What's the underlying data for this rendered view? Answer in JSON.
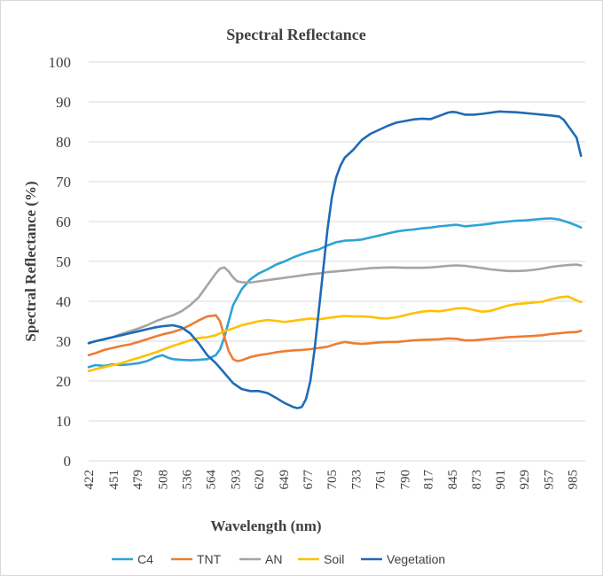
{
  "chart_data": {
    "type": "line",
    "title": "Spectral Reflectance",
    "xlabel": "Wavelength  (nm)",
    "ylabel": "Spectral Reflectance (%)",
    "ylim": [
      0,
      100
    ],
    "yticks": [
      "0",
      "10",
      "20",
      "30",
      "40",
      "50",
      "60",
      "70",
      "80",
      "90",
      "100"
    ],
    "xticks": [
      "422",
      "451",
      "479",
      "508",
      "536",
      "564",
      "593",
      "620",
      "649",
      "677",
      "705",
      "733",
      "761",
      "790",
      "817",
      "845",
      "873",
      "901",
      "929",
      "957",
      "985"
    ],
    "xlim": [
      422,
      1000
    ],
    "grid": true,
    "legend_position": "bottom",
    "series": [
      {
        "name": "C4",
        "color": "#2ea3d6",
        "x": [
          422,
          430,
          440,
          450,
          460,
          470,
          480,
          490,
          500,
          508,
          515,
          520,
          530,
          540,
          550,
          560,
          570,
          575,
          580,
          585,
          590,
          595,
          600,
          610,
          620,
          630,
          640,
          650,
          660,
          670,
          680,
          690,
          700,
          710,
          720,
          730,
          740,
          750,
          760,
          770,
          780,
          790,
          800,
          810,
          820,
          830,
          840,
          850,
          860,
          870,
          880,
          890,
          900,
          910,
          920,
          930,
          940,
          950,
          960,
          970,
          980,
          990,
          995
        ],
        "y": [
          23.5,
          24,
          23.8,
          24.2,
          24,
          24.2,
          24.5,
          25,
          26,
          26.5,
          25.8,
          25.5,
          25.3,
          25.2,
          25.3,
          25.5,
          26.5,
          28,
          31,
          35,
          39,
          41,
          43,
          45.5,
          47,
          48,
          49.2,
          50,
          51,
          51.8,
          52.5,
          53,
          54,
          54.8,
          55.2,
          55.3,
          55.5,
          56,
          56.5,
          57,
          57.5,
          57.8,
          58,
          58.3,
          58.5,
          58.8,
          59,
          59.2,
          58.8,
          59,
          59.2,
          59.5,
          59.8,
          60,
          60.2,
          60.3,
          60.5,
          60.7,
          60.8,
          60.5,
          59.8,
          59,
          58.5
        ]
      },
      {
        "name": "TNT",
        "color": "#ed7d31",
        "x": [
          422,
          430,
          440,
          450,
          460,
          470,
          480,
          490,
          500,
          510,
          520,
          530,
          540,
          550,
          560,
          570,
          575,
          580,
          585,
          590,
          595,
          600,
          610,
          620,
          630,
          640,
          650,
          660,
          670,
          680,
          690,
          700,
          710,
          720,
          730,
          740,
          750,
          760,
          770,
          780,
          790,
          800,
          810,
          820,
          830,
          840,
          850,
          860,
          870,
          880,
          890,
          900,
          910,
          920,
          930,
          940,
          950,
          960,
          970,
          980,
          990,
          995
        ],
        "y": [
          26.5,
          27,
          27.8,
          28.3,
          28.8,
          29.2,
          29.8,
          30.5,
          31.2,
          31.8,
          32.3,
          33,
          34,
          35.2,
          36.2,
          36.5,
          35,
          31,
          27.5,
          25.5,
          25,
          25.2,
          26,
          26.5,
          26.8,
          27.2,
          27.5,
          27.7,
          27.8,
          28,
          28.3,
          28.6,
          29.3,
          29.8,
          29.5,
          29.3,
          29.5,
          29.7,
          29.8,
          29.8,
          30,
          30.2,
          30.3,
          30.4,
          30.5,
          30.7,
          30.6,
          30.2,
          30.2,
          30.4,
          30.6,
          30.8,
          31,
          31.1,
          31.2,
          31.3,
          31.5,
          31.8,
          32,
          32.2,
          32.3,
          32.6
        ]
      },
      {
        "name": "AN",
        "color": "#a5a5a5",
        "x": [
          422,
          430,
          440,
          450,
          460,
          470,
          480,
          490,
          500,
          510,
          520,
          530,
          540,
          550,
          560,
          570,
          575,
          580,
          585,
          590,
          595,
          600,
          610,
          620,
          630,
          640,
          650,
          660,
          670,
          680,
          690,
          700,
          710,
          720,
          730,
          740,
          750,
          760,
          770,
          780,
          790,
          800,
          810,
          820,
          830,
          840,
          850,
          860,
          870,
          880,
          890,
          900,
          910,
          920,
          930,
          940,
          950,
          960,
          970,
          980,
          990,
          995
        ],
        "y": [
          29.5,
          30,
          30.5,
          31,
          31.8,
          32.5,
          33.2,
          34,
          35,
          35.8,
          36.5,
          37.5,
          39,
          41,
          44,
          47,
          48.2,
          48.5,
          47.5,
          46,
          45,
          44.8,
          44.7,
          45,
          45.3,
          45.6,
          45.9,
          46.2,
          46.5,
          46.8,
          47,
          47.3,
          47.5,
          47.7,
          47.9,
          48.1,
          48.3,
          48.4,
          48.5,
          48.5,
          48.4,
          48.4,
          48.4,
          48.5,
          48.7,
          48.9,
          49,
          48.9,
          48.6,
          48.3,
          48,
          47.8,
          47.6,
          47.6,
          47.7,
          47.9,
          48.2,
          48.6,
          48.9,
          49.1,
          49.2,
          49
        ]
      },
      {
        "name": "Soil",
        "color": "#ffc000",
        "x": [
          422,
          430,
          440,
          450,
          460,
          470,
          480,
          490,
          500,
          510,
          520,
          530,
          540,
          550,
          560,
          570,
          580,
          590,
          600,
          610,
          620,
          630,
          640,
          650,
          660,
          670,
          680,
          690,
          700,
          710,
          720,
          730,
          740,
          750,
          760,
          770,
          780,
          790,
          800,
          810,
          820,
          830,
          840,
          850,
          860,
          870,
          880,
          890,
          900,
          910,
          920,
          930,
          940,
          950,
          960,
          970,
          980,
          990,
          995
        ],
        "y": [
          22.5,
          23,
          23.5,
          24,
          24.5,
          25.2,
          25.8,
          26.5,
          27.2,
          28,
          28.8,
          29.5,
          30.2,
          30.8,
          31,
          31.5,
          32.5,
          33.2,
          34,
          34.5,
          35,
          35.3,
          35.1,
          34.8,
          35.1,
          35.4,
          35.7,
          35.5,
          35.8,
          36.1,
          36.3,
          36.2,
          36.2,
          36.1,
          35.8,
          35.7,
          36,
          36.5,
          37,
          37.4,
          37.6,
          37.5,
          37.8,
          38.2,
          38.3,
          37.8,
          37.4,
          37.6,
          38.3,
          38.9,
          39.3,
          39.5,
          39.7,
          39.9,
          40.5,
          41,
          41.2,
          40.2,
          39.8
        ]
      },
      {
        "name": "Vegetation",
        "color": "#1f6bb5",
        "x": [
          422,
          430,
          440,
          450,
          460,
          470,
          480,
          490,
          500,
          510,
          520,
          530,
          540,
          550,
          560,
          570,
          580,
          590,
          600,
          610,
          620,
          630,
          640,
          650,
          655,
          660,
          665,
          670,
          675,
          680,
          685,
          690,
          695,
          700,
          705,
          710,
          715,
          720,
          730,
          740,
          750,
          760,
          770,
          780,
          790,
          800,
          810,
          820,
          830,
          840,
          845,
          850,
          860,
          870,
          880,
          890,
          900,
          910,
          920,
          930,
          940,
          950,
          960,
          970,
          975,
          980,
          985,
          990,
          995
        ],
        "y": [
          29.5,
          30,
          30.5,
          31,
          31.5,
          32,
          32.5,
          33,
          33.5,
          33.8,
          34,
          33.5,
          32,
          29.5,
          26.5,
          24.5,
          22,
          19.5,
          18,
          17.5,
          17.5,
          17,
          15.8,
          14.5,
          14,
          13.5,
          13.2,
          13.5,
          15.5,
          20,
          28,
          38,
          48,
          58,
          66,
          71,
          74,
          76,
          78,
          80.5,
          82,
          83,
          84,
          84.8,
          85.2,
          85.6,
          85.8,
          85.7,
          86.5,
          87.3,
          87.5,
          87.4,
          86.8,
          86.8,
          87,
          87.3,
          87.6,
          87.5,
          87.4,
          87.2,
          87,
          86.8,
          86.6,
          86.3,
          85.5,
          84,
          82.5,
          81,
          76.5
        ]
      }
    ]
  }
}
